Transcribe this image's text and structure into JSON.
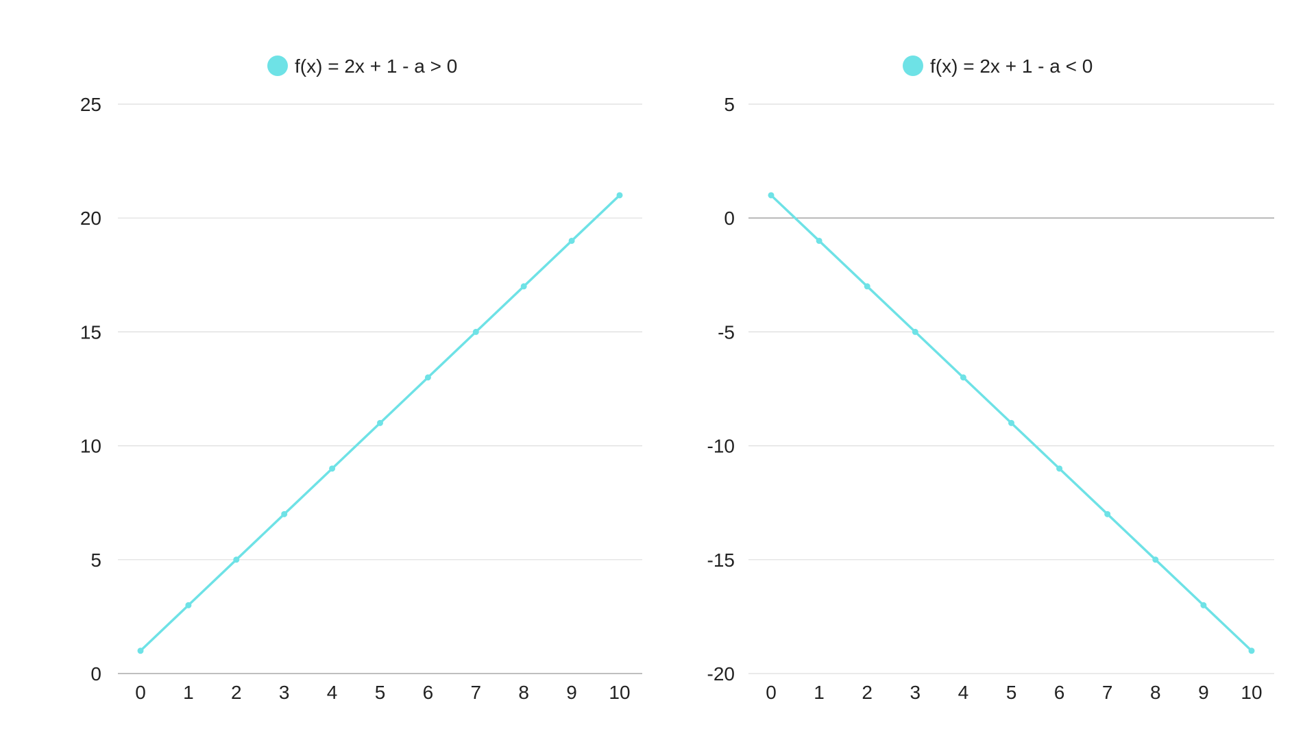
{
  "theme": {
    "series_color": "#6ee2e6",
    "grid_color": "#dddddd",
    "axis_color": "#aaaaaa",
    "text_color": "#222222"
  },
  "chart_data": [
    {
      "type": "line",
      "legend": "f(x) = 2x + 1 - a > 0",
      "legend_position": "top-center",
      "grid": true,
      "x": [
        0,
        1,
        2,
        3,
        4,
        5,
        6,
        7,
        8,
        9,
        10
      ],
      "series": [
        {
          "name": "f(x) = 2x + 1 - a > 0",
          "values": [
            1,
            3,
            5,
            7,
            9,
            11,
            13,
            15,
            17,
            19,
            21
          ]
        }
      ],
      "xlim": [
        0,
        10
      ],
      "ylim": [
        0,
        25
      ],
      "yticks": [
        0,
        5,
        10,
        15,
        20,
        25
      ],
      "xlabel": "",
      "ylabel": ""
    },
    {
      "type": "line",
      "legend": "f(x) = 2x + 1 - a < 0",
      "legend_position": "top-center",
      "grid": true,
      "x": [
        0,
        1,
        2,
        3,
        4,
        5,
        6,
        7,
        8,
        9,
        10
      ],
      "series": [
        {
          "name": "f(x) = 2x + 1 - a < 0",
          "values": [
            1,
            -1,
            -3,
            -5,
            -7,
            -9,
            -11,
            -13,
            -15,
            -17,
            -19
          ]
        }
      ],
      "xlim": [
        0,
        10
      ],
      "ylim": [
        -20,
        5
      ],
      "yticks": [
        -20,
        -15,
        -10,
        -5,
        0,
        5
      ],
      "xlabel": "",
      "ylabel": ""
    }
  ]
}
